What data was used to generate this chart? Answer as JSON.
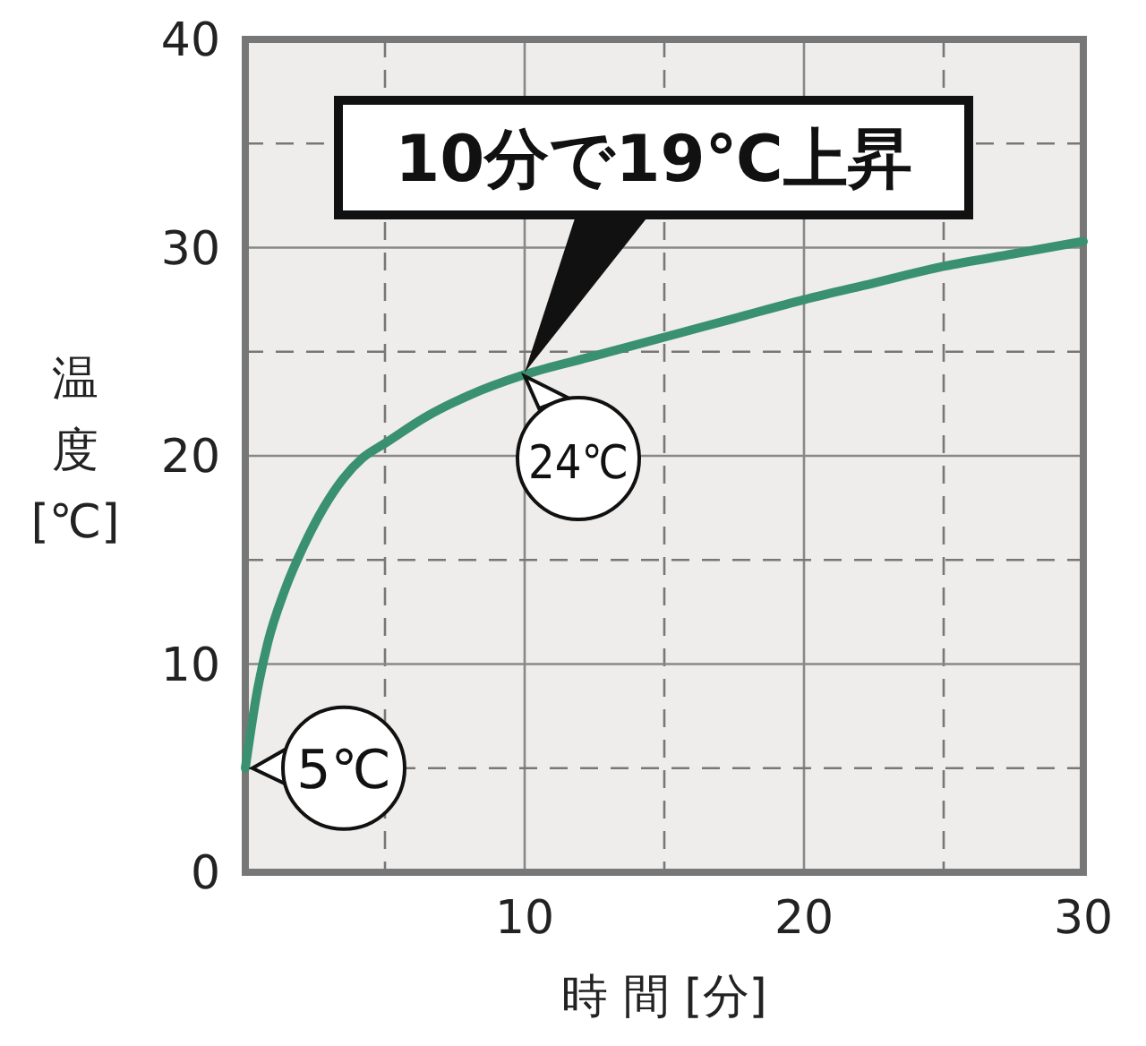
{
  "chart_data": {
    "type": "line",
    "xlabel": "時 間 [分]",
    "ylabel": "温度[℃]",
    "x": [
      0,
      0.4,
      0.8,
      1.4,
      2.1,
      2.8,
      3.5,
      4.2,
      5,
      6.5,
      8,
      10,
      12.5,
      15,
      17.5,
      20,
      22.5,
      25,
      27.5,
      30
    ],
    "series": [
      {
        "color": "#3a9172",
        "values": [
          5,
          8.5,
          11,
          13.5,
          15.7,
          17.5,
          18.9,
          19.9,
          20.6,
          21.9,
          22.9,
          23.9,
          24.8,
          25.7,
          26.6,
          27.5,
          28.3,
          29.1,
          29.7,
          30.3
        ]
      }
    ],
    "xlim": [
      0,
      30
    ],
    "xticks": [
      {
        "value": 5,
        "label": null
      },
      10,
      {
        "value": 15,
        "label": null
      },
      20,
      {
        "value": 25,
        "label": null
      },
      30
    ],
    "ylim": [
      0,
      40
    ],
    "yticks": [
      0,
      {
        "value": 5,
        "label": null
      },
      10,
      {
        "value": 15,
        "label": null
      },
      20,
      {
        "value": 25,
        "label": null
      },
      30,
      {
        "value": 35,
        "label": null
      },
      40
    ],
    "grid": true,
    "marker": "none",
    "line_style": "solid",
    "annotations": [
      "10分で19℃上昇",
      {
        "text": "24℃",
        "x": 10,
        "y": 24
      },
      {
        "text": "5℃",
        "x": 0,
        "y": 5
      }
    ]
  }
}
